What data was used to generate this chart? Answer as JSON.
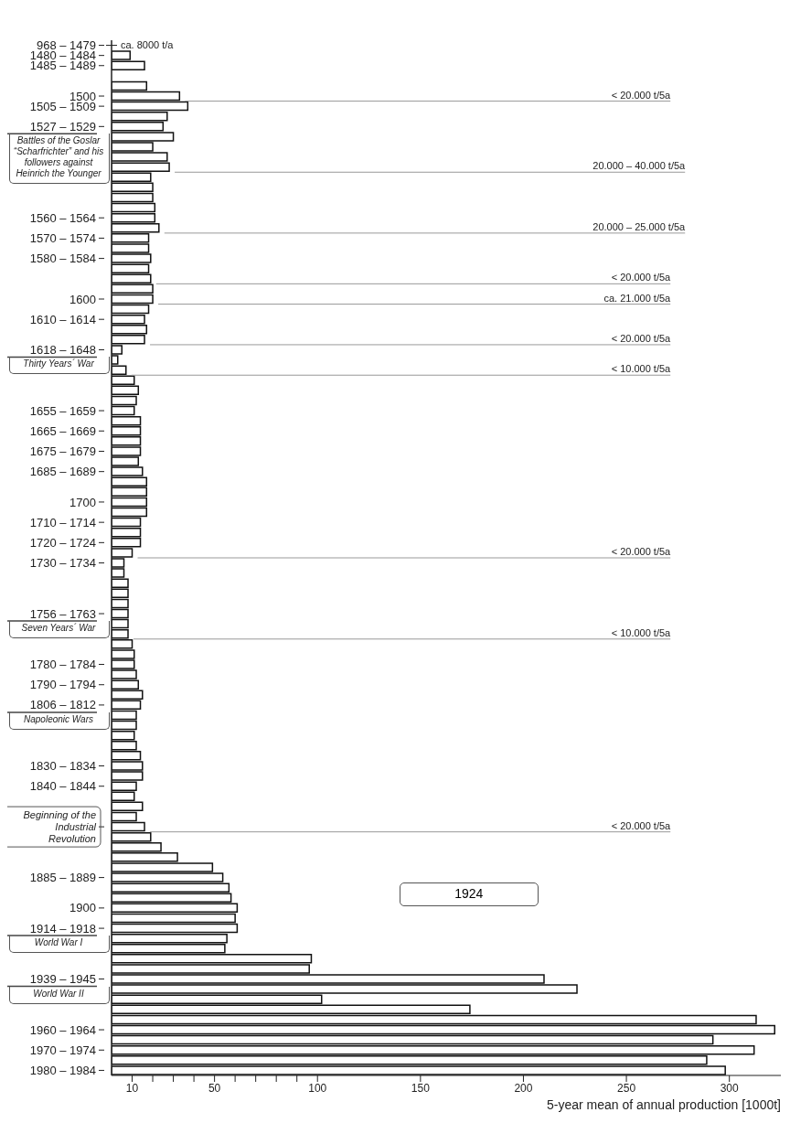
{
  "chart_data": {
    "type": "bar",
    "orientation": "horizontal",
    "xlabel": "5-year mean of annual production [1000t]",
    "xlim": [
      0,
      325
    ],
    "xticks": [
      10,
      {
        "value": 20,
        "label": null
      },
      {
        "value": 30,
        "label": null
      },
      {
        "value": 40,
        "label": null
      },
      50,
      {
        "value": 60,
        "label": null
      },
      {
        "value": 70,
        "label": null
      },
      {
        "value": 80,
        "label": null
      },
      {
        "value": 90,
        "label": null
      },
      100,
      150,
      200,
      250,
      300
    ],
    "color": "#ffffff",
    "categories": [
      "968 – 1479",
      "1480 – 1484",
      "1485 – 1489",
      null,
      null,
      "1500",
      "1505 – 1509",
      null,
      "1527 – 1529",
      null,
      null,
      null,
      null,
      null,
      null,
      null,
      null,
      "1560 – 1564",
      null,
      "1570 – 1574",
      null,
      "1580 – 1584",
      null,
      null,
      null,
      "1600",
      null,
      "1610 – 1614",
      null,
      null,
      "1618 – 1648",
      null,
      null,
      null,
      null,
      null,
      "1655 – 1659",
      null,
      "1665 – 1669",
      null,
      "1675 – 1679",
      null,
      "1685 – 1689",
      null,
      null,
      "1700",
      null,
      "1710 – 1714",
      null,
      "1720 – 1724",
      null,
      "1730 – 1734",
      null,
      null,
      null,
      null,
      "1756 – 1763",
      null,
      null,
      null,
      null,
      "1780 – 1784",
      null,
      "1790 – 1794",
      null,
      "1806 – 1812",
      null,
      null,
      null,
      null,
      null,
      "1830 – 1834",
      null,
      "1840 – 1844",
      null,
      null,
      null,
      "Beginning of the Industrial Revolution",
      null,
      null,
      null,
      null,
      "1885 – 1889",
      null,
      null,
      "1900",
      null,
      "1914 – 1918",
      null,
      null,
      null,
      null,
      "1939 – 1945",
      null,
      null,
      null,
      null,
      "1960 – 1964",
      null,
      "1970 – 1974",
      null,
      "1980 – 1984"
    ],
    "values": [
      null,
      9,
      16,
      null,
      17,
      33,
      37,
      27,
      25,
      30,
      20,
      27,
      28,
      19,
      20,
      20,
      21,
      21,
      23,
      18,
      18,
      19,
      18,
      19,
      20,
      20,
      18,
      16,
      17,
      16,
      5,
      3,
      7,
      11,
      13,
      12,
      11,
      14,
      14,
      14,
      14,
      13,
      15,
      17,
      17,
      17,
      17,
      14,
      14,
      14,
      10,
      6,
      6,
      8,
      8,
      8,
      8,
      8,
      8,
      10,
      11,
      11,
      12,
      13,
      15,
      14,
      12,
      12,
      11,
      12,
      14,
      15,
      15,
      12,
      11,
      15,
      12,
      16,
      19,
      24,
      32,
      49,
      54,
      57,
      58,
      61,
      60,
      61,
      56,
      55,
      97,
      96,
      210,
      226,
      102,
      174,
      313,
      322,
      292,
      312,
      289,
      298
    ],
    "value_labels": [
      "ca. 8000 t/a",
      null,
      null,
      null,
      null,
      "< 20.000 t/5a",
      null,
      null,
      null,
      null,
      null,
      null,
      null,
      null,
      null,
      null,
      null,
      null,
      null,
      null,
      null,
      null,
      null,
      "< 20.000 t/5a",
      null,
      "ca. 21.000 t/5a",
      null,
      null,
      null,
      "< 20.000 t/5a",
      null,
      null,
      "< 10.000 t/5a",
      null,
      null,
      null,
      null,
      null,
      null,
      null,
      null,
      null,
      null,
      null,
      null,
      null,
      null,
      null,
      null,
      null,
      "< 20.000 t/5a",
      null,
      null,
      null,
      null,
      null,
      null,
      null,
      "< 10.000 t/5a",
      null,
      null,
      null,
      null,
      null,
      null,
      null,
      null,
      null,
      null,
      null,
      null,
      null,
      null,
      null,
      null,
      null,
      null,
      "< 20.000 t/5a",
      null,
      null,
      null,
      null,
      null,
      null,
      null,
      null,
      null,
      null,
      null,
      null,
      null,
      null,
      null,
      null,
      null,
      null,
      null,
      null,
      null,
      null,
      null,
      null
    ],
    "annotations": [
      "Battles of the Goslar “Scharfrichter” and his followers against Heinrich the Younger",
      "Thirty Years´ War",
      "Seven Years´ War",
      "Napoleonic Wars",
      "World War I",
      "World War II",
      "1924",
      "20.000 – 40.000 t/5a",
      "20.000 – 25.000 t/5a"
    ]
  }
}
